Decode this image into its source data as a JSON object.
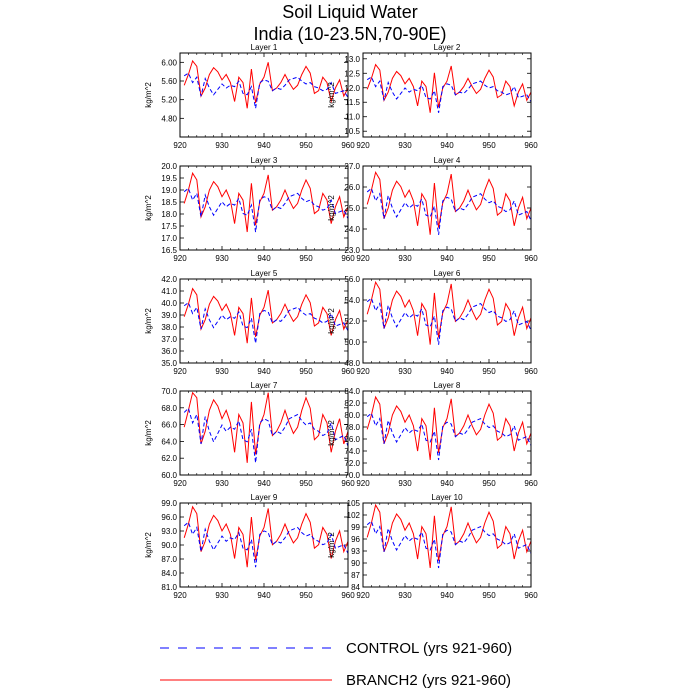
{
  "figure": {
    "title_line1": "Soil Liquid Water",
    "title_line2": "India (10-23.5N,70-90E)"
  },
  "colors": {
    "control": "#0000ff",
    "branch": "#ff0000"
  },
  "legend": [
    {
      "key": "control",
      "label": "CONTROL (yrs 921-960)",
      "style": "dashed"
    },
    {
      "key": "branch",
      "label": "BRANCH2 (yrs 921-960)",
      "style": "solid"
    }
  ],
  "chart_data": {
    "type": "line",
    "x": [
      921,
      922,
      923,
      924,
      925,
      926,
      927,
      928,
      929,
      930,
      931,
      932,
      933,
      934,
      935,
      936,
      937,
      938,
      939,
      940,
      941,
      942,
      943,
      944,
      945,
      946,
      947,
      948,
      949,
      950,
      951,
      952,
      953,
      954,
      955,
      956,
      957,
      958,
      959,
      960
    ],
    "xlim": [
      920,
      960
    ],
    "xticks": [
      920,
      930,
      940,
      950,
      960
    ],
    "ylabel": "kg/m^2",
    "base_control": [
      0.45,
      0.55,
      0.2,
      0.4,
      -0.3,
      0.35,
      0.0,
      -0.25,
      -0.05,
      0.15,
      0.0,
      0.1,
      0.05,
      0.25,
      -0.2,
      -0.25,
      0.05,
      -0.75,
      0.2,
      0.3,
      0.25,
      -0.1,
      0.0,
      -0.05,
      0.1,
      0.3,
      0.35,
      0.4,
      0.25,
      0.15,
      0.2,
      0.05,
      0.0,
      -0.1,
      -0.05,
      0.2,
      -0.2,
      -0.15,
      -0.1,
      -0.35
    ],
    "base_branch": [
      0.1,
      0.5,
      1.0,
      0.8,
      -0.3,
      0.0,
      0.5,
      0.75,
      0.6,
      0.3,
      0.5,
      0.2,
      -0.5,
      0.4,
      0.2,
      -0.75,
      0.7,
      -0.55,
      0.15,
      0.4,
      0.95,
      -0.1,
      0.0,
      0.2,
      0.5,
      0.2,
      -0.05,
      0.1,
      0.5,
      0.8,
      0.55,
      -0.2,
      -0.1,
      0.4,
      0.2,
      -0.5,
      0.0,
      0.3,
      -0.3,
      0.0
    ],
    "panels": [
      {
        "title": "Layer 1",
        "ymin": 4.4,
        "ymax": 6.2,
        "mean": 5.45,
        "amp": 0.58,
        "yticks": [
          4.8,
          5.2,
          5.6,
          6.0
        ],
        "ytick_labels": [
          "4.80",
          "5.20",
          "5.60",
          "6.00"
        ]
      },
      {
        "title": "Layer 2",
        "ymin": 10.3,
        "ymax": 13.2,
        "mean": 11.85,
        "amp": 0.95,
        "yticks": [
          10.5,
          11.0,
          11.5,
          12.0,
          12.5,
          13.0
        ],
        "ytick_labels": [
          "10.5",
          "11.0",
          "11.5",
          "12.0",
          "12.5",
          "13.0"
        ]
      },
      {
        "title": "Layer 3",
        "ymin": 16.5,
        "ymax": 20.0,
        "mean": 18.3,
        "amp": 1.4,
        "yticks": [
          16.5,
          17.0,
          17.5,
          18.0,
          18.5,
          19.0,
          19.5,
          20.0
        ],
        "ytick_labels": [
          "16.5",
          "17.0",
          "17.5",
          "18.0",
          "18.5",
          "19.0",
          "19.5",
          "20.0"
        ]
      },
      {
        "title": "Layer 4",
        "ymin": 23.0,
        "ymax": 27.0,
        "mean": 25.0,
        "amp": 1.7,
        "yticks": [
          23.0,
          24.0,
          25.0,
          26.0,
          27.0
        ],
        "ytick_labels": [
          "23.0",
          "24.0",
          "25.0",
          "26.0",
          "27.0"
        ]
      },
      {
        "title": "Layer 5",
        "ymin": 35.0,
        "ymax": 42.0,
        "mean": 38.6,
        "amp": 2.6,
        "yticks": [
          35.0,
          36.0,
          37.0,
          38.0,
          39.0,
          40.0,
          41.0,
          42.0
        ],
        "ytick_labels": [
          "35.0",
          "36.0",
          "37.0",
          "38.0",
          "39.0",
          "40.0",
          "41.0",
          "42.0"
        ]
      },
      {
        "title": "Layer 6",
        "ymin": 48.0,
        "ymax": 56.0,
        "mean": 52.3,
        "amp": 3.4,
        "yticks": [
          48.0,
          50.0,
          52.0,
          54.0,
          56.0
        ],
        "ytick_labels": [
          "48.0",
          "50.0",
          "52.0",
          "54.0",
          "56.0"
        ]
      },
      {
        "title": "Layer 7",
        "ymin": 60.0,
        "ymax": 70.0,
        "mean": 65.2,
        "amp": 5.0,
        "yticks": [
          60.0,
          62.0,
          64.0,
          66.0,
          68.0,
          70.0
        ],
        "ytick_labels": [
          "60.0",
          "62.0",
          "64.0",
          "66.0",
          "68.0",
          "70.0"
        ]
      },
      {
        "title": "Layer 8",
        "ymin": 70.0,
        "ymax": 84.0,
        "mean": 77.0,
        "amp": 6.0,
        "yticks": [
          70.0,
          72.0,
          74.0,
          76.0,
          78.0,
          80.0,
          82.0,
          84.0
        ],
        "ytick_labels": [
          "70.0",
          "72.0",
          "74.0",
          "76.0",
          "78.0",
          "80.0",
          "82.0",
          "84.0"
        ]
      },
      {
        "title": "Layer 9",
        "ymin": 81.0,
        "ymax": 99.0,
        "mean": 90.8,
        "amp": 7.4,
        "yticks": [
          81.0,
          84.0,
          87.0,
          90.0,
          93.0,
          96.0,
          99.0
        ],
        "ytick_labels": [
          "81.0",
          "84.0",
          "87.0",
          "90.0",
          "93.0",
          "96.0",
          "99.0"
        ]
      },
      {
        "title": "Layer 10",
        "ymin": 84.0,
        "ymax": 105.0,
        "mean": 95.5,
        "amp": 9.0,
        "yticks": [
          84,
          87,
          90,
          93,
          96,
          99,
          102,
          105
        ],
        "ytick_labels": [
          "84",
          "87",
          "90",
          "93",
          "96",
          "99",
          "102",
          "105"
        ]
      }
    ]
  }
}
